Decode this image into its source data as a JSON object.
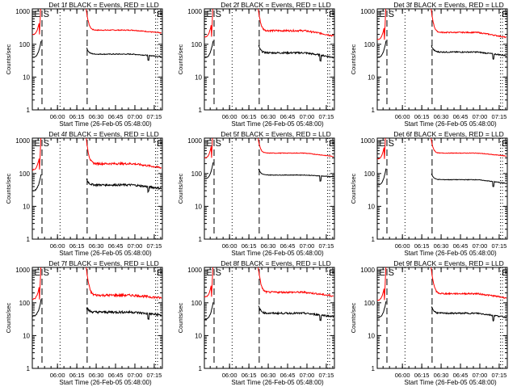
{
  "figure": {
    "title_template": "Det {n}f BLACK = Events, RED = LLD",
    "xlabel": "Start Time (26-Feb-05 05:48:00)",
    "ylabel": "Counts/sec",
    "colors": {
      "events": "#000000",
      "lld": "#ff0000",
      "background": "#ffffff"
    }
  },
  "chart_data": [
    {
      "type": "line",
      "detector": "1f",
      "title": "Det 1f BLACK = Events, RED = LLD"
    },
    {
      "type": "line",
      "detector": "2f",
      "title": "Det 2f BLACK = Events, RED = LLD"
    },
    {
      "type": "line",
      "detector": "3f",
      "title": "Det 3f BLACK = Events, RED = LLD"
    },
    {
      "type": "line",
      "detector": "4f",
      "title": "Det 4f BLACK = Events, RED = LLD"
    },
    {
      "type": "line",
      "detector": "5f",
      "title": "Det 5f BLACK = Events, RED = LLD"
    },
    {
      "type": "line",
      "detector": "6f",
      "title": "Det 6f BLACK = Events, RED = LLD"
    },
    {
      "type": "line",
      "detector": "7f",
      "title": "Det 7f BLACK = Events, RED = LLD"
    },
    {
      "type": "line",
      "detector": "8f",
      "title": "Det 8f BLACK = Events, RED = LLD"
    },
    {
      "type": "line",
      "detector": "9f",
      "title": "Det 9f BLACK = Events, RED = LLD"
    }
  ],
  "shared_axes": {
    "xlabel": "Start Time (26-Feb-05 05:48:00)",
    "ylabel": "Counts/sec",
    "yscale": "log",
    "ylim": [
      1,
      1200
    ],
    "yticks": [
      1,
      10,
      100,
      1000
    ],
    "ytick_labels": [
      "1",
      "10",
      "100",
      "1000"
    ],
    "xlim_minutes_after_0548": [
      -7.5,
      93.3
    ],
    "xticks_minutes_after_0548": [
      12,
      27,
      42,
      57,
      72,
      87
    ],
    "xtick_labels": [
      "06:00",
      "06:15",
      "06:30",
      "06:45",
      "07:00",
      "07:15"
    ],
    "dashed_markers_minutes": [
      0,
      35
    ],
    "dotted_markers_minutes": [
      14,
      88,
      109
    ],
    "annotations": [
      {
        "text": "E",
        "at_minute": -6
      },
      {
        "text": "S",
        "at_minute": 1
      },
      {
        "text": "E",
        "at_minute": 89
      }
    ]
  },
  "series_shape": {
    "note": "approximate levels read from plots (counts/sec); data gap between ~06:00 and ~06:20",
    "panels": [
      {
        "lld_pre": 200,
        "ev_pre": 40,
        "lld_post_start": 1000,
        "lld_plateau": 270,
        "lld_end": 220,
        "ev_post_start": 80,
        "ev_plateau": 50,
        "ev_end": 42,
        "noise": 0.03
      },
      {
        "lld_pre": 170,
        "ev_pre": 40,
        "lld_post_start": 1000,
        "lld_plateau": 260,
        "lld_end": 180,
        "ev_post_start": 90,
        "ev_plateau": 55,
        "ev_end": 40,
        "noise": 0.06
      },
      {
        "lld_pre": 140,
        "ev_pre": 40,
        "lld_post_start": 1000,
        "lld_plateau": 230,
        "lld_end": 160,
        "ev_post_start": 90,
        "ev_plateau": 58,
        "ev_end": 45,
        "noise": 0.04
      },
      {
        "lld_pre": 130,
        "ev_pre": 30,
        "lld_post_start": 1000,
        "lld_plateau": 200,
        "lld_end": 150,
        "ev_post_start": 70,
        "ev_plateau": 45,
        "ev_end": 35,
        "noise": 0.07
      },
      {
        "lld_pre": 300,
        "ev_pre": 70,
        "lld_post_start": 1000,
        "lld_plateau": 420,
        "lld_end": 330,
        "ev_post_start": 140,
        "ev_plateau": 90,
        "ev_end": 80,
        "noise": 0.02
      },
      {
        "lld_pre": 280,
        "ev_pre": 45,
        "lld_post_start": 1000,
        "lld_plateau": 420,
        "lld_end": 340,
        "ev_post_start": 100,
        "ev_plateau": 65,
        "ev_end": 50,
        "noise": 0.02
      },
      {
        "lld_pre": 130,
        "ev_pre": 40,
        "lld_post_start": 1000,
        "lld_plateau": 170,
        "lld_end": 140,
        "ev_post_start": 75,
        "ev_plateau": 52,
        "ev_end": 42,
        "noise": 0.08
      },
      {
        "lld_pre": 150,
        "ev_pre": 32,
        "lld_post_start": 1000,
        "lld_plateau": 210,
        "lld_end": 160,
        "ev_post_start": 80,
        "ev_plateau": 48,
        "ev_end": 38,
        "noise": 0.06
      },
      {
        "lld_pre": 120,
        "ev_pre": 35,
        "lld_post_start": 1000,
        "lld_plateau": 190,
        "lld_end": 140,
        "ev_post_start": 80,
        "ev_plateau": 48,
        "ev_end": 36,
        "noise": 0.05
      }
    ]
  }
}
